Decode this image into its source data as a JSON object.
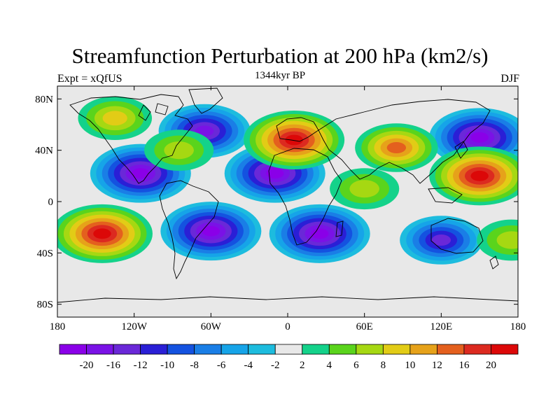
{
  "title": "Streamfunction Perturbation at 200 hPa (km2/s)",
  "left_string": "Expt = xQfUS",
  "center_string": "1344kyr BP",
  "right_string": "DJF",
  "lat_labels": [
    "80N",
    "40N",
    "0",
    "40S",
    "80S"
  ],
  "lat_values": [
    80,
    40,
    0,
    -40,
    -80
  ],
  "lon_labels": [
    "180",
    "120W",
    "60W",
    "0",
    "60E",
    "120E",
    "180"
  ],
  "lon_values": [
    -180,
    -120,
    -60,
    0,
    60,
    120,
    180
  ],
  "colorbar": {
    "labels": [
      "-20",
      "-16",
      "-12",
      "-10",
      "-8",
      "-6",
      "-4",
      "-2",
      "2",
      "4",
      "6",
      "8",
      "10",
      "12",
      "16",
      "20"
    ],
    "colors": [
      "#8a00e8",
      "#7a12e6",
      "#6a28d8",
      "#2a1fd6",
      "#1452e0",
      "#1a7ee6",
      "#16a4e8",
      "#1dbcde",
      "#e8e8e8",
      "#14d28a",
      "#5ad41c",
      "#a6d812",
      "#e2cc16",
      "#e6a21a",
      "#e4601e",
      "#dc2a20",
      "#dc0808"
    ]
  },
  "chart_data": {
    "type": "heatmap",
    "title": "Streamfunction Perturbation at 200 hPa (km2/s)",
    "left_string": "Expt = xQfUS",
    "center_string": "1344kyr BP",
    "right_string": "DJF",
    "projection": "cylindrical equidistant",
    "xlim": [
      -180,
      180
    ],
    "ylim": [
      -90,
      90
    ],
    "contour_levels": [
      -20,
      -16,
      -12,
      -10,
      -8,
      -6,
      -4,
      -2,
      2,
      4,
      6,
      8,
      10,
      12,
      16,
      20
    ],
    "features": [
      {
        "name": "low centre",
        "lon": -115,
        "lat": 22,
        "value": -20
      },
      {
        "name": "low centre",
        "lon": -10,
        "lat": 22,
        "value": -20
      },
      {
        "name": "low centre",
        "lon": 25,
        "lat": -25,
        "value": -20
      },
      {
        "name": "low centre",
        "lon": -60,
        "lat": -23,
        "value": -20
      },
      {
        "name": "low centre",
        "lon": 120,
        "lat": -30,
        "value": -12
      },
      {
        "name": "low centre",
        "lon": 150,
        "lat": 50,
        "value": -20
      },
      {
        "name": "low centre",
        "lon": -65,
        "lat": 55,
        "value": -16
      },
      {
        "name": "high centre",
        "lon": 5,
        "lat": 48,
        "value": 20
      },
      {
        "name": "high centre",
        "lon": 150,
        "lat": 20,
        "value": 20
      },
      {
        "name": "high centre",
        "lon": -145,
        "lat": -25,
        "value": 20
      },
      {
        "name": "high centre",
        "lon": 85,
        "lat": 42,
        "value": 12
      },
      {
        "name": "high centre",
        "lon": -135,
        "lat": 65,
        "value": 8
      },
      {
        "name": "high centre",
        "lon": -85,
        "lat": 40,
        "value": 6
      },
      {
        "name": "high centre",
        "lon": 60,
        "lat": 10,
        "value": 6
      },
      {
        "name": "high centre",
        "lon": 175,
        "lat": -30,
        "value": 6
      }
    ]
  }
}
